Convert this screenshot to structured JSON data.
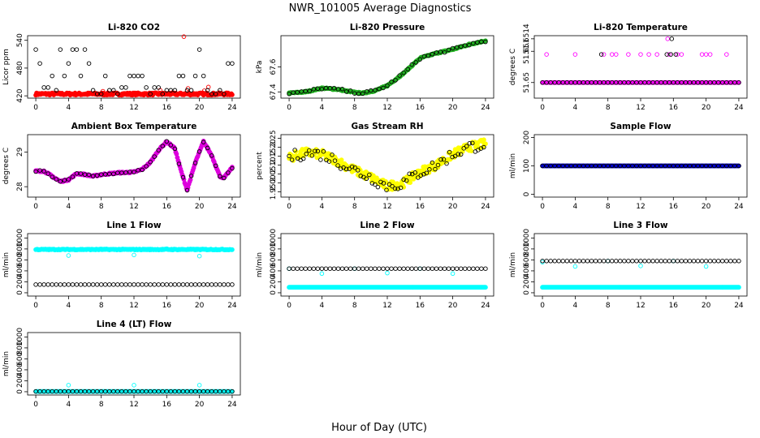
{
  "figure": {
    "title": "NWR_101005  Average Diagnostics",
    "xlabel": "Hour of Day (UTC)"
  },
  "chart_data": [
    {
      "id": "co2",
      "type": "scatter",
      "title": "Li-820 CO2",
      "ylabel": "Licor ppm",
      "xlim": [
        -1,
        25
      ],
      "ylim": [
        415,
        550
      ],
      "xticks": [
        0,
        4,
        8,
        12,
        16,
        20,
        24
      ],
      "yticks": [
        420,
        480,
        540
      ],
      "series": [
        {
          "name": "main",
          "color": "#ff0000",
          "marker": "filled",
          "pattern": "band",
          "base": 424,
          "amp": 1.5,
          "noise": 2.5
        },
        {
          "name": "outliers",
          "color": "#ff0000",
          "marker": "open",
          "points": [
            [
              18.1,
              548
            ],
            [
              21.1,
              439
            ],
            [
              18.6,
              436
            ],
            [
              20.6,
              431
            ],
            [
              8.2,
              430
            ],
            [
              15.2,
              432
            ]
          ]
        },
        {
          "name": "hourly",
          "color": "#000000",
          "marker": "open",
          "pattern": "levels",
          "levels": [
            520,
            490,
            463,
            438,
            424,
            432
          ]
        }
      ]
    },
    {
      "id": "pressure",
      "type": "scatter",
      "title": "Li-820 Pressure",
      "ylabel": "kPa",
      "xlim": [
        -1,
        25
      ],
      "ylim": [
        67.35,
        67.85
      ],
      "xticks": [
        0,
        4,
        8,
        12,
        16,
        20,
        24
      ],
      "yticks": [
        67.4,
        67.6
      ],
      "series": [
        {
          "name": "main",
          "color": "#22b022",
          "marker": "filled",
          "pattern": "curve",
          "noise": 0.005,
          "curve": [
            [
              0,
              67.39
            ],
            [
              2,
              67.4
            ],
            [
              4,
              67.43
            ],
            [
              6,
              67.42
            ],
            [
              7.5,
              67.4
            ],
            [
              9,
              67.39
            ],
            [
              10.5,
              67.41
            ],
            [
              12,
              67.45
            ],
            [
              14,
              67.55
            ],
            [
              16,
              67.67
            ],
            [
              18,
              67.71
            ],
            [
              20,
              67.74
            ],
            [
              22,
              67.78
            ],
            [
              24,
              67.81
            ]
          ]
        },
        {
          "name": "hourly",
          "color": "#000000",
          "marker": "open",
          "pattern": "curve",
          "step": 0.5,
          "noise": 0.01,
          "curve": [
            [
              0,
              67.39
            ],
            [
              2,
              67.4
            ],
            [
              4,
              67.43
            ],
            [
              6,
              67.42
            ],
            [
              7.5,
              67.4
            ],
            [
              9,
              67.39
            ],
            [
              10.5,
              67.41
            ],
            [
              12,
              67.45
            ],
            [
              14,
              67.55
            ],
            [
              16,
              67.67
            ],
            [
              18,
              67.71
            ],
            [
              20,
              67.74
            ],
            [
              22,
              67.78
            ],
            [
              24,
              67.81
            ]
          ]
        }
      ]
    },
    {
      "id": "licor-temp",
      "type": "scatter",
      "title": "Li-820 Temperature",
      "ylabel": "degrees C",
      "xlim": [
        -1,
        25
      ],
      "ylim": [
        51.6495,
        51.6515
      ],
      "xticks": [
        0,
        4,
        8,
        12,
        16,
        20,
        24
      ],
      "yticks": [
        51.65,
        51.651,
        51.6514
      ],
      "ytick_labels": [
        "51.65",
        "51.651",
        "51.6514"
      ],
      "series": [
        {
          "name": "base",
          "color": "#ff00ff",
          "marker": "filled",
          "pattern": "line",
          "value": 51.65
        },
        {
          "name": "upper",
          "color": "#ff00ff",
          "marker": "open",
          "points": [
            [
              0.5,
              51.6509
            ],
            [
              4,
              51.6509
            ],
            [
              7.5,
              51.6509
            ],
            [
              8.5,
              51.6509
            ],
            [
              9,
              51.6509
            ],
            [
              10.5,
              51.6509
            ],
            [
              12,
              51.6509
            ],
            [
              13,
              51.6509
            ],
            [
              14,
              51.6509
            ],
            [
              15.5,
              51.6509
            ],
            [
              16.5,
              51.6509
            ],
            [
              17,
              51.6509
            ],
            [
              19.5,
              51.6509
            ],
            [
              20,
              51.6509
            ],
            [
              20.5,
              51.6509
            ],
            [
              22.5,
              51.6509
            ],
            [
              15.3,
              51.6514
            ]
          ]
        },
        {
          "name": "hourly",
          "color": "#000000",
          "marker": "open",
          "pattern": "line",
          "value": 51.65,
          "step": 0.5,
          "extra": [
            [
              7.2,
              51.6509
            ],
            [
              15.2,
              51.6509
            ],
            [
              15.7,
              51.6509
            ],
            [
              16.3,
              51.6509
            ],
            [
              15.8,
              51.6514
            ]
          ]
        }
      ]
    },
    {
      "id": "box-temp",
      "type": "scatter",
      "title": "Ambient Box Temperature",
      "ylabel": "degrees C",
      "xlim": [
        -1,
        25
      ],
      "ylim": [
        27.7,
        29.5
      ],
      "xticks": [
        0,
        4,
        8,
        12,
        16,
        20,
        24
      ],
      "yticks": [
        28,
        29
      ],
      "series": [
        {
          "name": "main",
          "color": "#dd00dd",
          "marker": "filled",
          "pattern": "curve",
          "noise": 0.02,
          "curve": [
            [
              0,
              28.45
            ],
            [
              1,
              28.45
            ],
            [
              2,
              28.3
            ],
            [
              3,
              28.15
            ],
            [
              4,
              28.2
            ],
            [
              5,
              28.38
            ],
            [
              6,
              28.35
            ],
            [
              7,
              28.3
            ],
            [
              8,
              28.35
            ],
            [
              10,
              28.4
            ],
            [
              12,
              28.42
            ],
            [
              13,
              28.5
            ],
            [
              14,
              28.7
            ],
            [
              15,
              29.05
            ],
            [
              16,
              29.3
            ],
            [
              17,
              29.1
            ],
            [
              17.7,
              28.5
            ],
            [
              18.5,
              27.9
            ],
            [
              19.5,
              28.7
            ],
            [
              20.5,
              29.3
            ],
            [
              21.5,
              28.9
            ],
            [
              22.5,
              28.3
            ],
            [
              23,
              28.25
            ],
            [
              24,
              28.55
            ]
          ]
        },
        {
          "name": "hourly",
          "color": "#000000",
          "marker": "open",
          "pattern": "curve",
          "step": 0.5,
          "noise": 0.02,
          "curve": [
            [
              0,
              28.45
            ],
            [
              1,
              28.45
            ],
            [
              2,
              28.3
            ],
            [
              3,
              28.15
            ],
            [
              4,
              28.2
            ],
            [
              5,
              28.38
            ],
            [
              6,
              28.35
            ],
            [
              7,
              28.3
            ],
            [
              8,
              28.35
            ],
            [
              10,
              28.4
            ],
            [
              12,
              28.42
            ],
            [
              13,
              28.5
            ],
            [
              14,
              28.7
            ],
            [
              15,
              29.05
            ],
            [
              16,
              29.3
            ],
            [
              17,
              29.1
            ],
            [
              17.7,
              28.5
            ],
            [
              18.5,
              27.9
            ],
            [
              19.5,
              28.7
            ],
            [
              20.5,
              29.3
            ],
            [
              21.5,
              28.9
            ],
            [
              22.5,
              28.3
            ],
            [
              23,
              28.25
            ],
            [
              24,
              28.55
            ]
          ]
        }
      ]
    },
    {
      "id": "rh",
      "type": "scatter",
      "title": "Gas Stream RH",
      "ylabel": "percent",
      "xlim": [
        -1,
        25
      ],
      "ylim": [
        1.92,
        2.27
      ],
      "xticks": [
        0,
        4,
        8,
        12,
        16,
        20,
        24
      ],
      "yticks": [
        1.95,
        2.0,
        2.05,
        2.1,
        2.15,
        2.2,
        2.25
      ],
      "ytick_labels": [
        "1.95",
        "2.00",
        "2.05",
        "2.10",
        "2.15",
        "2.20",
        "2.25"
      ],
      "series": [
        {
          "name": "main",
          "color": "#ffff00",
          "marker": "filled",
          "pattern": "curve",
          "noise": 0.025,
          "curve": [
            [
              0,
              2.14
            ],
            [
              2,
              2.17
            ],
            [
              4,
              2.16
            ],
            [
              6,
              2.12
            ],
            [
              8,
              2.07
            ],
            [
              10,
              2.03
            ],
            [
              12,
              1.98
            ],
            [
              14,
              2.0
            ],
            [
              16,
              2.06
            ],
            [
              18,
              2.1
            ],
            [
              20,
              2.16
            ],
            [
              22,
              2.2
            ],
            [
              24,
              2.22
            ]
          ]
        },
        {
          "name": "hourly",
          "color": "#000000",
          "marker": "open",
          "pattern": "curve",
          "step": 0.35,
          "noise": 0.035,
          "curve": [
            [
              0,
              2.14
            ],
            [
              2,
              2.17
            ],
            [
              4,
              2.16
            ],
            [
              6,
              2.12
            ],
            [
              8,
              2.07
            ],
            [
              10,
              2.03
            ],
            [
              12,
              1.98
            ],
            [
              14,
              2.0
            ],
            [
              16,
              2.06
            ],
            [
              18,
              2.1
            ],
            [
              20,
              2.16
            ],
            [
              22,
              2.2
            ],
            [
              24,
              2.22
            ]
          ]
        }
      ]
    },
    {
      "id": "sample-flow",
      "type": "scatter",
      "title": "Sample Flow",
      "ylabel": "ml/min",
      "xlim": [
        -1,
        25
      ],
      "ylim": [
        -10,
        210
      ],
      "xticks": [
        0,
        4,
        8,
        12,
        16,
        20,
        24
      ],
      "yticks": [
        0,
        100,
        200
      ],
      "series": [
        {
          "name": "main",
          "color": "#0000cc",
          "marker": "filled",
          "pattern": "line",
          "value": 100
        },
        {
          "name": "hourly",
          "color": "#000000",
          "marker": "open",
          "pattern": "line",
          "value": 100,
          "step": 0.5
        }
      ]
    },
    {
      "id": "line1-flow",
      "type": "scatter",
      "title": "Line 1 Flow",
      "ylabel": "ml/min",
      "xlim": [
        -1,
        25
      ],
      "ylim": [
        -60,
        1080
      ],
      "xticks": [
        0,
        4,
        8,
        12,
        16,
        20,
        24
      ],
      "yticks": [
        0,
        200,
        400,
        600,
        800,
        1000
      ],
      "series": [
        {
          "name": "main",
          "color": "#00ffff",
          "marker": "filled",
          "pattern": "line",
          "value": 790,
          "noise": 8
        },
        {
          "name": "dips",
          "color": "#00ffff",
          "marker": "open",
          "points": [
            [
              4,
              680
            ],
            [
              12,
              690
            ],
            [
              20,
              670
            ],
            [
              8,
              800
            ],
            [
              16,
              805
            ]
          ]
        },
        {
          "name": "hourly",
          "color": "#000000",
          "marker": "open",
          "pattern": "line",
          "value": 150,
          "step": 0.5
        }
      ]
    },
    {
      "id": "line2-flow",
      "type": "scatter",
      "title": "Line 2 Flow",
      "ylabel": "ml/min",
      "xlim": [
        -1,
        25
      ],
      "ylim": [
        -60,
        1080
      ],
      "xticks": [
        0,
        4,
        8,
        12,
        16,
        20,
        24
      ],
      "yticks": [
        0,
        200,
        400,
        600,
        800,
        1000
      ],
      "series": [
        {
          "name": "main",
          "color": "#00ffff",
          "marker": "filled",
          "pattern": "line",
          "value": 100
        },
        {
          "name": "spikes",
          "color": "#00ffff",
          "marker": "open",
          "points": [
            [
              0,
              440
            ],
            [
              4,
              350
            ],
            [
              12,
              360
            ],
            [
              20,
              350
            ],
            [
              8,
              440
            ],
            [
              16,
              440
            ]
          ]
        },
        {
          "name": "hourly",
          "color": "#000000",
          "marker": "open",
          "pattern": "line",
          "value": 440,
          "step": 0.5
        }
      ]
    },
    {
      "id": "line3-flow",
      "type": "scatter",
      "title": "Line 3 Flow",
      "ylabel": "ml/min",
      "xlim": [
        -1,
        25
      ],
      "ylim": [
        -60,
        1080
      ],
      "xticks": [
        0,
        4,
        8,
        12,
        16,
        20,
        24
      ],
      "yticks": [
        0,
        200,
        400,
        600,
        800,
        1000
      ],
      "series": [
        {
          "name": "main",
          "color": "#00ffff",
          "marker": "filled",
          "pattern": "line",
          "value": 100
        },
        {
          "name": "spikes",
          "color": "#00ffff",
          "marker": "open",
          "points": [
            [
              0,
              560
            ],
            [
              4,
              480
            ],
            [
              12,
              490
            ],
            [
              20,
              480
            ],
            [
              8,
              580
            ],
            [
              16,
              580
            ]
          ]
        },
        {
          "name": "hourly",
          "color": "#000000",
          "marker": "open",
          "pattern": "line",
          "value": 580,
          "step": 0.5
        }
      ]
    },
    {
      "id": "line4-flow",
      "type": "scatter",
      "title": "Line 4 (LT) Flow",
      "ylabel": "ml/min",
      "xlim": [
        -1,
        25
      ],
      "ylim": [
        -60,
        1080
      ],
      "xticks": [
        0,
        4,
        8,
        12,
        16,
        20,
        24
      ],
      "yticks": [
        0,
        200,
        400,
        600,
        800,
        1000
      ],
      "series": [
        {
          "name": "main",
          "color": "#00ffff",
          "marker": "filled",
          "pattern": "line",
          "value": 5
        },
        {
          "name": "spikes",
          "color": "#00ffff",
          "marker": "open",
          "points": [
            [
              4,
              120
            ],
            [
              12,
              120
            ],
            [
              20,
              120
            ]
          ]
        },
        {
          "name": "hourly",
          "color": "#000000",
          "marker": "open",
          "pattern": "line",
          "value": 5,
          "step": 0.5
        }
      ]
    }
  ]
}
